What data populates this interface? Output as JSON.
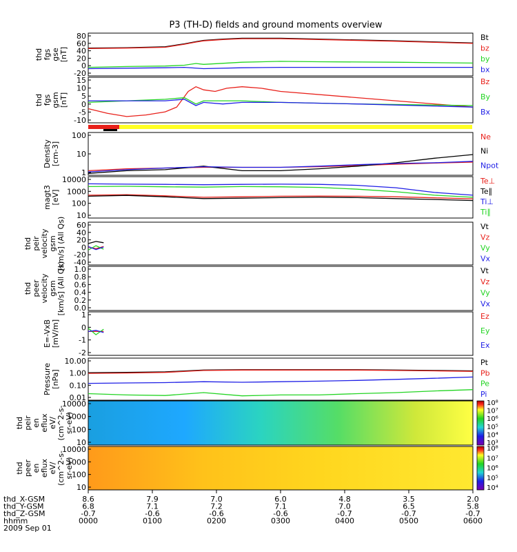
{
  "title": "P3 (TH-D) fields and ground moments overview",
  "colors": {
    "black": "#000000",
    "red": "#e8201a",
    "green": "#22d422",
    "blue": "#1d1de6",
    "yellow": "#ffff22"
  },
  "chart_data": [
    {
      "type": "line",
      "id": "fgs_gse",
      "ylabel": [
        "thd",
        "fgs",
        "gse",
        "[nT]"
      ],
      "yticks": [
        "80",
        "60",
        "40",
        "20",
        "0",
        "-20"
      ],
      "ylim": [
        -20,
        80
      ],
      "series": [
        {
          "name": "Bt",
          "color": "black",
          "x": [
            0,
            0.1,
            0.2,
            0.25,
            0.28,
            0.3,
            0.35,
            0.4,
            0.5,
            0.6,
            0.8,
            1.0
          ],
          "values": [
            45,
            46,
            48,
            55,
            60,
            63,
            66,
            68,
            68,
            66,
            62,
            57
          ]
        },
        {
          "name": "bz",
          "color": "red",
          "x": [
            0,
            0.1,
            0.2,
            0.25,
            0.28,
            0.3,
            0.35,
            0.4,
            0.5,
            0.6,
            0.8,
            1.0
          ],
          "values": [
            44,
            45,
            47,
            54,
            59,
            62,
            65,
            67,
            67,
            65,
            61,
            56
          ]
        },
        {
          "name": "by",
          "color": "green",
          "x": [
            0,
            0.1,
            0.2,
            0.25,
            0.28,
            0.3,
            0.4,
            0.5,
            0.6,
            0.8,
            1.0
          ],
          "values": [
            0,
            2,
            3,
            5,
            9,
            7,
            12,
            14,
            13,
            12,
            10
          ]
        },
        {
          "name": "bx",
          "color": "blue",
          "x": [
            0,
            0.1,
            0.2,
            0.25,
            0.3,
            0.4,
            0.5,
            0.6,
            0.8,
            1.0
          ],
          "values": [
            -3,
            -2,
            -1,
            0,
            -3,
            -1,
            0,
            0,
            0,
            0
          ]
        }
      ]
    },
    {
      "type": "line",
      "id": "fgs_gsm",
      "ylabel": [
        "thd",
        "fgs",
        "gsm",
        "[nT]"
      ],
      "yticks": [
        "15",
        "10",
        "5",
        "0",
        "-5",
        "-10"
      ],
      "ylim": [
        -13,
        16
      ],
      "series": [
        {
          "name": "Bz",
          "color": "red",
          "x": [
            0,
            0.05,
            0.1,
            0.15,
            0.2,
            0.23,
            0.26,
            0.28,
            0.3,
            0.33,
            0.36,
            0.4,
            0.45,
            0.5,
            1.0
          ],
          "values": [
            -4,
            -7,
            -9,
            -8,
            -6,
            -3,
            7,
            10,
            8,
            7,
            9,
            10,
            9,
            7,
            -3
          ]
        },
        {
          "name": "By",
          "color": "green",
          "x": [
            0,
            0.1,
            0.2,
            0.25,
            0.28,
            0.3,
            0.35,
            0.4,
            0.5,
            0.7,
            1.0
          ],
          "values": [
            0,
            1,
            2,
            3,
            -1,
            1,
            1,
            1,
            0,
            -1,
            -2
          ]
        },
        {
          "name": "Bx",
          "color": "blue",
          "x": [
            0,
            0.1,
            0.2,
            0.25,
            0.28,
            0.3,
            0.35,
            0.4,
            0.5,
            0.7,
            1.0
          ],
          "values": [
            1,
            1,
            1,
            2,
            -2,
            0,
            -1,
            0,
            0,
            -1,
            -3
          ]
        }
      ]
    },
    {
      "type": "line",
      "id": "density",
      "ylabel": [
        "Density",
        "[cm-3]"
      ],
      "log": true,
      "yticks": [
        "100",
        "10",
        "1"
      ],
      "ylim": [
        0.3,
        200
      ],
      "series": [
        {
          "name": "Ne",
          "color": "red",
          "x": [
            0,
            0.1,
            0.2,
            0.3,
            0.4,
            0.5,
            0.6,
            0.7,
            0.8,
            0.9,
            1.0
          ],
          "values": [
            0.6,
            0.8,
            0.9,
            1.0,
            1.0,
            1.0,
            1.1,
            1.3,
            1.6,
            1.9,
            2.2
          ]
        },
        {
          "name": "Ni",
          "color": "black",
          "x": [
            0,
            0.1,
            0.2,
            0.3,
            0.4,
            0.5,
            0.6,
            0.7,
            0.8,
            0.9,
            1.0
          ],
          "values": [
            0.4,
            0.6,
            0.7,
            1.2,
            0.6,
            0.6,
            0.8,
            1.2,
            2.0,
            4.0,
            7.0
          ]
        },
        {
          "name": "Npot",
          "color": "blue",
          "x": [
            0,
            0.1,
            0.2,
            0.3,
            0.4,
            0.5,
            0.6,
            0.7,
            0.8,
            0.9,
            1.0
          ],
          "values": [
            0.5,
            0.7,
            0.9,
            1.1,
            1.0,
            1.0,
            1.2,
            1.5,
            1.8,
            2.0,
            2.5
          ]
        }
      ]
    },
    {
      "type": "line",
      "id": "temperature",
      "ylabel": [
        "magt3",
        "[eV]"
      ],
      "log": true,
      "yticks": [
        "10000",
        "1000",
        "100",
        "10"
      ],
      "ylim": [
        10,
        12000
      ],
      "series": [
        {
          "name": "Te⊥",
          "color": "red",
          "x": [
            0,
            0.1,
            0.2,
            0.3,
            0.4,
            0.5,
            0.6,
            0.7,
            0.8,
            0.9,
            1.0
          ],
          "values": [
            500,
            550,
            450,
            350,
            380,
            420,
            430,
            420,
            380,
            320,
            270
          ]
        },
        {
          "name": "Te∥",
          "color": "black",
          "x": [
            0,
            0.1,
            0.2,
            0.3,
            0.4,
            0.5,
            0.6,
            0.7,
            0.8,
            0.9,
            1.0
          ],
          "values": [
            420,
            480,
            380,
            280,
            300,
            330,
            350,
            330,
            280,
            240,
            200
          ]
        },
        {
          "name": "Ti⊥",
          "color": "blue",
          "x": [
            0,
            0.1,
            0.2,
            0.3,
            0.4,
            0.5,
            0.6,
            0.7,
            0.8,
            0.9,
            1.0
          ],
          "values": [
            3500,
            3300,
            3200,
            3000,
            3200,
            3300,
            3200,
            2700,
            1800,
            800,
            500
          ]
        },
        {
          "name": "Ti∥",
          "color": "green",
          "x": [
            0,
            0.1,
            0.2,
            0.3,
            0.4,
            0.5,
            0.6,
            0.7,
            0.8,
            0.9,
            1.0
          ],
          "values": [
            2200,
            2300,
            2100,
            2000,
            2200,
            2100,
            1900,
            1400,
            900,
            500,
            350
          ]
        }
      ]
    },
    {
      "type": "line",
      "id": "peir_velocity",
      "ylabel": [
        "thd",
        "peir",
        "velocity",
        "gsm",
        "[km/s] (All Qs)"
      ],
      "yticks": [
        "60",
        "40",
        "20",
        "0",
        "-20",
        "-40"
      ],
      "ylim": [
        -40,
        60
      ],
      "series": [
        {
          "name": "Vt",
          "color": "black",
          "x": [
            0,
            0.02,
            0.04
          ],
          "values": [
            10,
            15,
            12
          ]
        },
        {
          "name": "Vz",
          "color": "red",
          "x": [
            0,
            0.02,
            0.04
          ],
          "values": [
            2,
            -2,
            3
          ]
        },
        {
          "name": "Vy",
          "color": "green",
          "x": [
            0,
            0.02,
            0.04
          ],
          "values": [
            -5,
            5,
            -3
          ]
        },
        {
          "name": "Vx",
          "color": "blue",
          "x": [
            0,
            0.02,
            0.04
          ],
          "values": [
            3,
            -4,
            2
          ]
        }
      ],
      "legend": [
        "Vt",
        "Vz",
        "Vy",
        "Vx"
      ]
    },
    {
      "type": "line",
      "id": "peer_velocity",
      "ylabel": [
        "thd",
        "peer",
        "velocity",
        "gsm",
        "[km/s] (All Qs)"
      ],
      "yticks": [
        "1.0",
        "0.8",
        "0.6",
        "0.4",
        "0.2",
        "0.0"
      ],
      "ylim": [
        0,
        1
      ],
      "series": [],
      "legend": [
        "Vt",
        "Vz",
        "Vy",
        "Vx"
      ]
    },
    {
      "type": "line",
      "id": "efield",
      "ylabel": [
        "E=-VxB",
        "[mV/m]"
      ],
      "yticks": [
        "1",
        "0",
        "-1",
        "-2"
      ],
      "ylim": [
        -2.2,
        1.8
      ],
      "series": [
        {
          "name": "Ez",
          "color": "red",
          "x": [
            0,
            0.04
          ],
          "values": [
            0,
            0
          ]
        },
        {
          "name": "Ey",
          "color": "green",
          "x": [
            0,
            0.02,
            0.04
          ],
          "values": [
            0.3,
            -0.3,
            0.2
          ]
        },
        {
          "name": "Ex",
          "color": "blue",
          "x": [
            0,
            0.02,
            0.04
          ],
          "values": [
            0,
            0.1,
            -0.1
          ]
        }
      ],
      "legend": [
        "Ez",
        "Ey",
        "Ex"
      ]
    },
    {
      "type": "line",
      "id": "pressure",
      "ylabel": [
        "Pressure",
        "[nPa]"
      ],
      "log": true,
      "yticks": [
        "10.00",
        "1.00",
        "0.10",
        "0.01"
      ],
      "ylim": [
        0.008,
        12
      ],
      "series": [
        {
          "name": "Pt",
          "color": "black",
          "x": [
            0,
            0.1,
            0.2,
            0.3,
            0.4,
            0.5,
            0.6,
            0.7,
            0.8,
            0.9,
            1.0
          ],
          "values": [
            0.95,
            1.0,
            1.1,
            1.5,
            1.6,
            1.6,
            1.6,
            1.6,
            1.5,
            1.4,
            1.3
          ]
        },
        {
          "name": "Pb",
          "color": "red",
          "x": [
            0,
            0.1,
            0.2,
            0.3,
            0.4,
            0.5,
            0.6,
            0.7,
            0.8,
            0.9,
            1.0
          ],
          "values": [
            0.85,
            0.9,
            1.0,
            1.4,
            1.5,
            1.5,
            1.5,
            1.5,
            1.4,
            1.3,
            1.2
          ]
        },
        {
          "name": "Pe",
          "color": "green",
          "x": [
            0,
            0.1,
            0.2,
            0.3,
            0.4,
            0.5,
            0.6,
            0.7,
            0.8,
            0.9,
            1.0
          ],
          "values": [
            0.025,
            0.02,
            0.018,
            0.03,
            0.017,
            0.02,
            0.02,
            0.025,
            0.03,
            0.04,
            0.05
          ]
        },
        {
          "name": "Pi",
          "color": "blue",
          "x": [
            0,
            0.1,
            0.2,
            0.3,
            0.4,
            0.5,
            0.6,
            0.7,
            0.8,
            0.9,
            1.0
          ],
          "values": [
            0.15,
            0.16,
            0.17,
            0.2,
            0.18,
            0.2,
            0.22,
            0.25,
            0.3,
            0.36,
            0.45
          ]
        }
      ]
    },
    {
      "type": "heatmap",
      "id": "peir_spec",
      "ylabel": [
        "thd",
        "peir",
        "en",
        "eflux",
        "eV/",
        "(cm^2-s-",
        "sr-eV)"
      ],
      "yticks": [
        "10000",
        "1000",
        "100",
        "10"
      ],
      "log": true,
      "colorbar": [
        "10⁸",
        "10⁷",
        "10⁶",
        "10⁵",
        "10⁴",
        "10³"
      ]
    },
    {
      "type": "heatmap",
      "id": "peer_spec",
      "ylabel": [
        "thd",
        "peer",
        "en",
        "eflux",
        "eV/",
        "(cm^2-s-",
        "sr-eV)"
      ],
      "yticks": [
        "10000",
        "1000",
        "100",
        "10"
      ],
      "log": true,
      "colorbar": [
        "10⁸",
        "10⁷",
        "10⁶",
        "10⁵",
        "10⁴"
      ]
    }
  ],
  "xaxis": {
    "ticks_x": [
      0,
      1,
      2,
      3,
      4,
      5,
      6
    ],
    "rows": [
      {
        "label": "thd_X-GSM",
        "values": [
          "8.6",
          "7.9",
          "7.0",
          "6.0",
          "4.8",
          "3.5",
          "2.0"
        ]
      },
      {
        "label": "thd_Y-GSM",
        "values": [
          "6.8",
          "7.1",
          "7.2",
          "7.1",
          "7.0",
          "6.5",
          "5.8"
        ]
      },
      {
        "label": "thd_Z-GSM",
        "values": [
          "-0.7",
          "-0.6",
          "-0.6",
          "-0.6",
          "-0.7",
          "-0.7",
          "-0.7"
        ]
      },
      {
        "label": "hhmm",
        "values": [
          "0000",
          "0100",
          "0200",
          "0300",
          "0400",
          "0500",
          "0600"
        ]
      }
    ],
    "date": "2009 Sep 01"
  }
}
